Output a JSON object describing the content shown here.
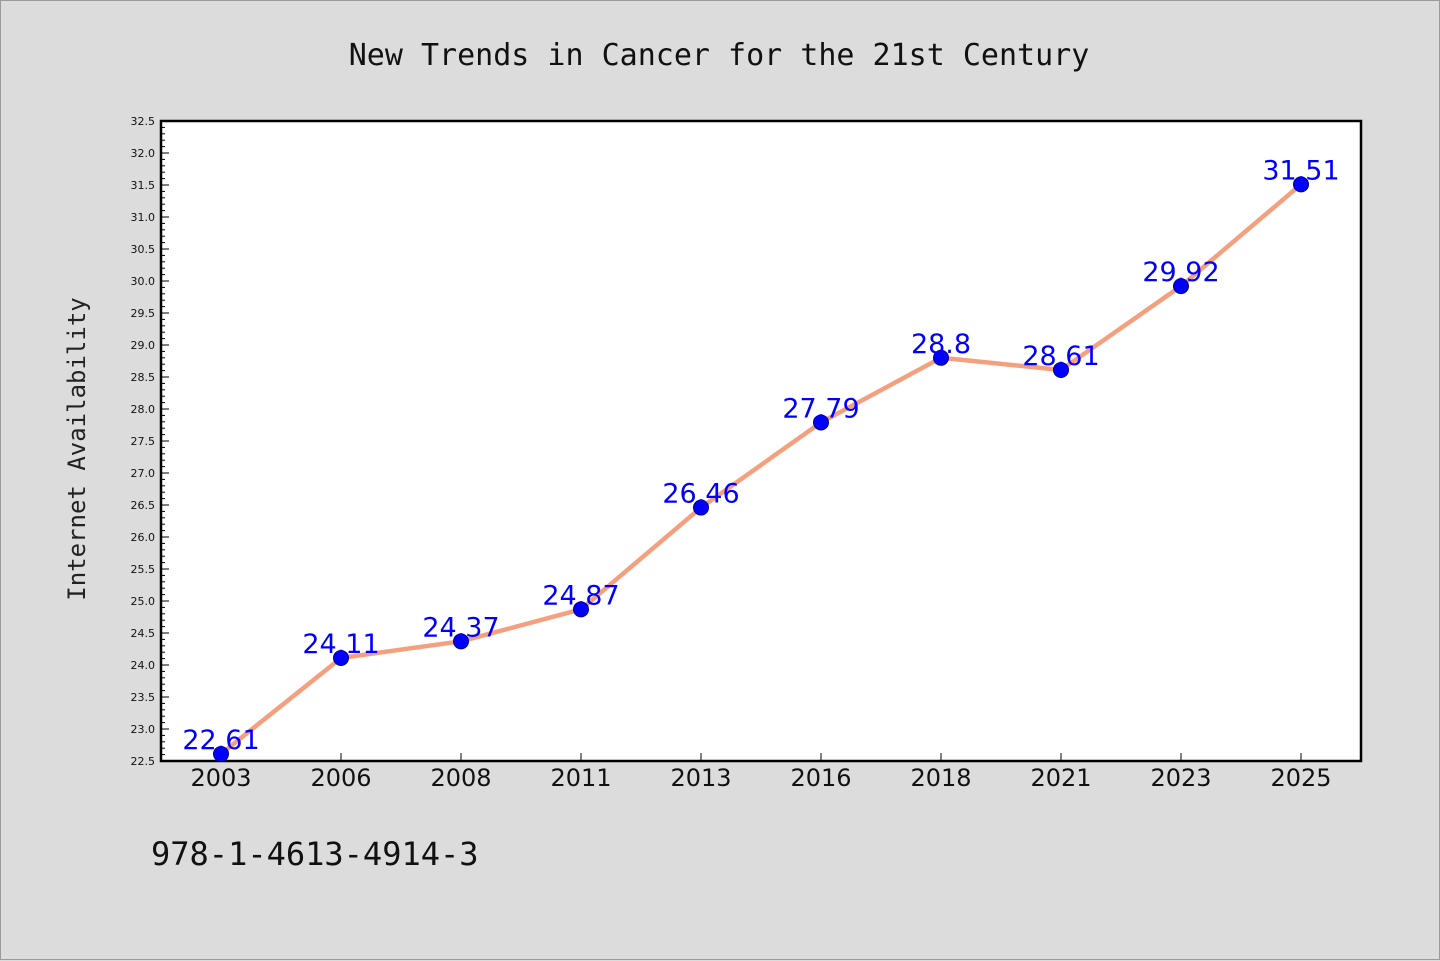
{
  "chart_data": {
    "type": "line",
    "title": "New Trends in Cancer for the 21st Century",
    "ylabel": "Internet Availability",
    "xlabel": "",
    "x": [
      "2003",
      "2006",
      "2008",
      "2011",
      "2013",
      "2016",
      "2018",
      "2021",
      "2023",
      "2025"
    ],
    "series": [
      {
        "values": [
          22.61,
          24.11,
          24.37,
          24.87,
          26.46,
          27.79,
          28.8,
          28.61,
          29.92,
          31.51
        ],
        "labels": [
          "22.61",
          "24.11",
          "24.37",
          "24.87",
          "26.46",
          "27.79",
          "28.8",
          "28.61",
          "29.92",
          "31.51"
        ]
      }
    ],
    "ylim": [
      22.5,
      32.5
    ],
    "yticks": [
      "22.5",
      "23.0",
      "23.5",
      "24.0",
      "24.5",
      "25.0",
      "25.5",
      "26.0",
      "26.5",
      "27.0",
      "27.5",
      "28.0",
      "28.5",
      "29.0",
      "29.5",
      "30.0",
      "30.5",
      "31.0",
      "31.5",
      "32.0",
      "32.5"
    ],
    "grid": false,
    "legend": "none",
    "colors": {
      "line": "#f4a07e",
      "marker": "#0000ff",
      "label": "#0000ff",
      "background": "#dcdcdc",
      "plot_background": "#ffffff"
    }
  },
  "footer": {
    "caption": "978-1-4613-4914-3"
  }
}
